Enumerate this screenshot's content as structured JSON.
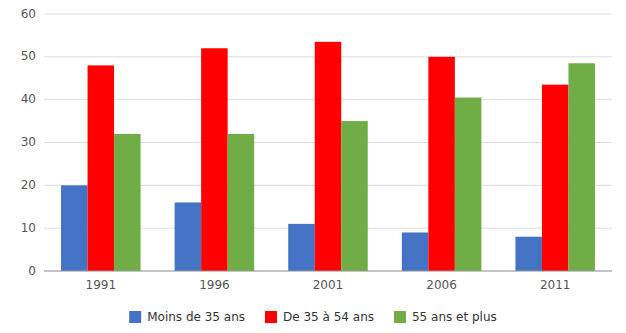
{
  "chart_data": {
    "type": "bar",
    "categories": [
      "1991",
      "1996",
      "2001",
      "2006",
      "2011"
    ],
    "series": [
      {
        "name": "Moins de 35 ans",
        "color": "#4472C4",
        "values": [
          20,
          16,
          11,
          9,
          8
        ]
      },
      {
        "name": "De 35 à 54 ans",
        "color": "#FF0000",
        "values": [
          48,
          52,
          53.5,
          50,
          43.5
        ]
      },
      {
        "name": "55 ans et plus",
        "color": "#70AD47",
        "values": [
          32,
          32,
          35,
          40.5,
          48.5
        ]
      }
    ],
    "ylim": [
      0,
      60
    ],
    "yticks": [
      0,
      10,
      20,
      30,
      40,
      50,
      60
    ],
    "grid": true,
    "legend": "bottom"
  }
}
